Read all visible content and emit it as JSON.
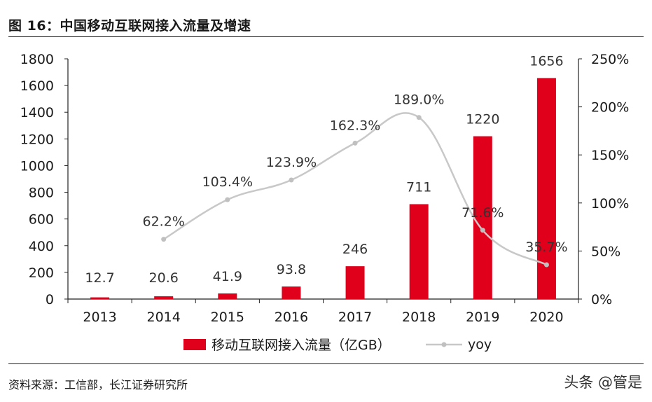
{
  "figure_caption": "图 16：中国移动互联网接入流量及增速",
  "source_note": "资料来源：工信部，长江证券研究所",
  "watermark": "头条 @管是",
  "colors": {
    "bar": "#e0001b",
    "line": "#c8c8c8",
    "marker": "#c0c0c0",
    "text": "#1a1a1a",
    "axis": "#222222"
  },
  "chart_data": {
    "type": "bar",
    "categories": [
      "2013",
      "2014",
      "2015",
      "2016",
      "2017",
      "2018",
      "2019",
      "2020"
    ],
    "series": [
      {
        "name": "移动互联网接入流量（亿GB）",
        "type": "bar",
        "axis": "left",
        "values": [
          12.7,
          20.6,
          41.9,
          93.8,
          246,
          711,
          1220,
          1656
        ],
        "labels": [
          "12.7",
          "20.6",
          "41.9",
          "93.8",
          "246",
          "711",
          "1220",
          "1656"
        ]
      },
      {
        "name": "yoy",
        "type": "line",
        "axis": "right",
        "values": [
          null,
          62.2,
          103.4,
          123.9,
          162.3,
          189.0,
          71.6,
          35.7
        ],
        "labels": [
          "",
          "62.2%",
          "103.4%",
          "123.9%",
          "162.3%",
          "189.0%",
          "71.6%",
          "35.7%"
        ]
      }
    ],
    "y_left": {
      "min": 0,
      "max": 1800,
      "ticks": [
        "0",
        "200",
        "400",
        "600",
        "800",
        "1000",
        "1200",
        "1400",
        "1600",
        "1800"
      ]
    },
    "y_right": {
      "min": 0,
      "max": 250,
      "ticks": [
        "0%",
        "50%",
        "100%",
        "150%",
        "200%",
        "250%"
      ]
    },
    "legend_position": "bottom",
    "grid": false
  }
}
